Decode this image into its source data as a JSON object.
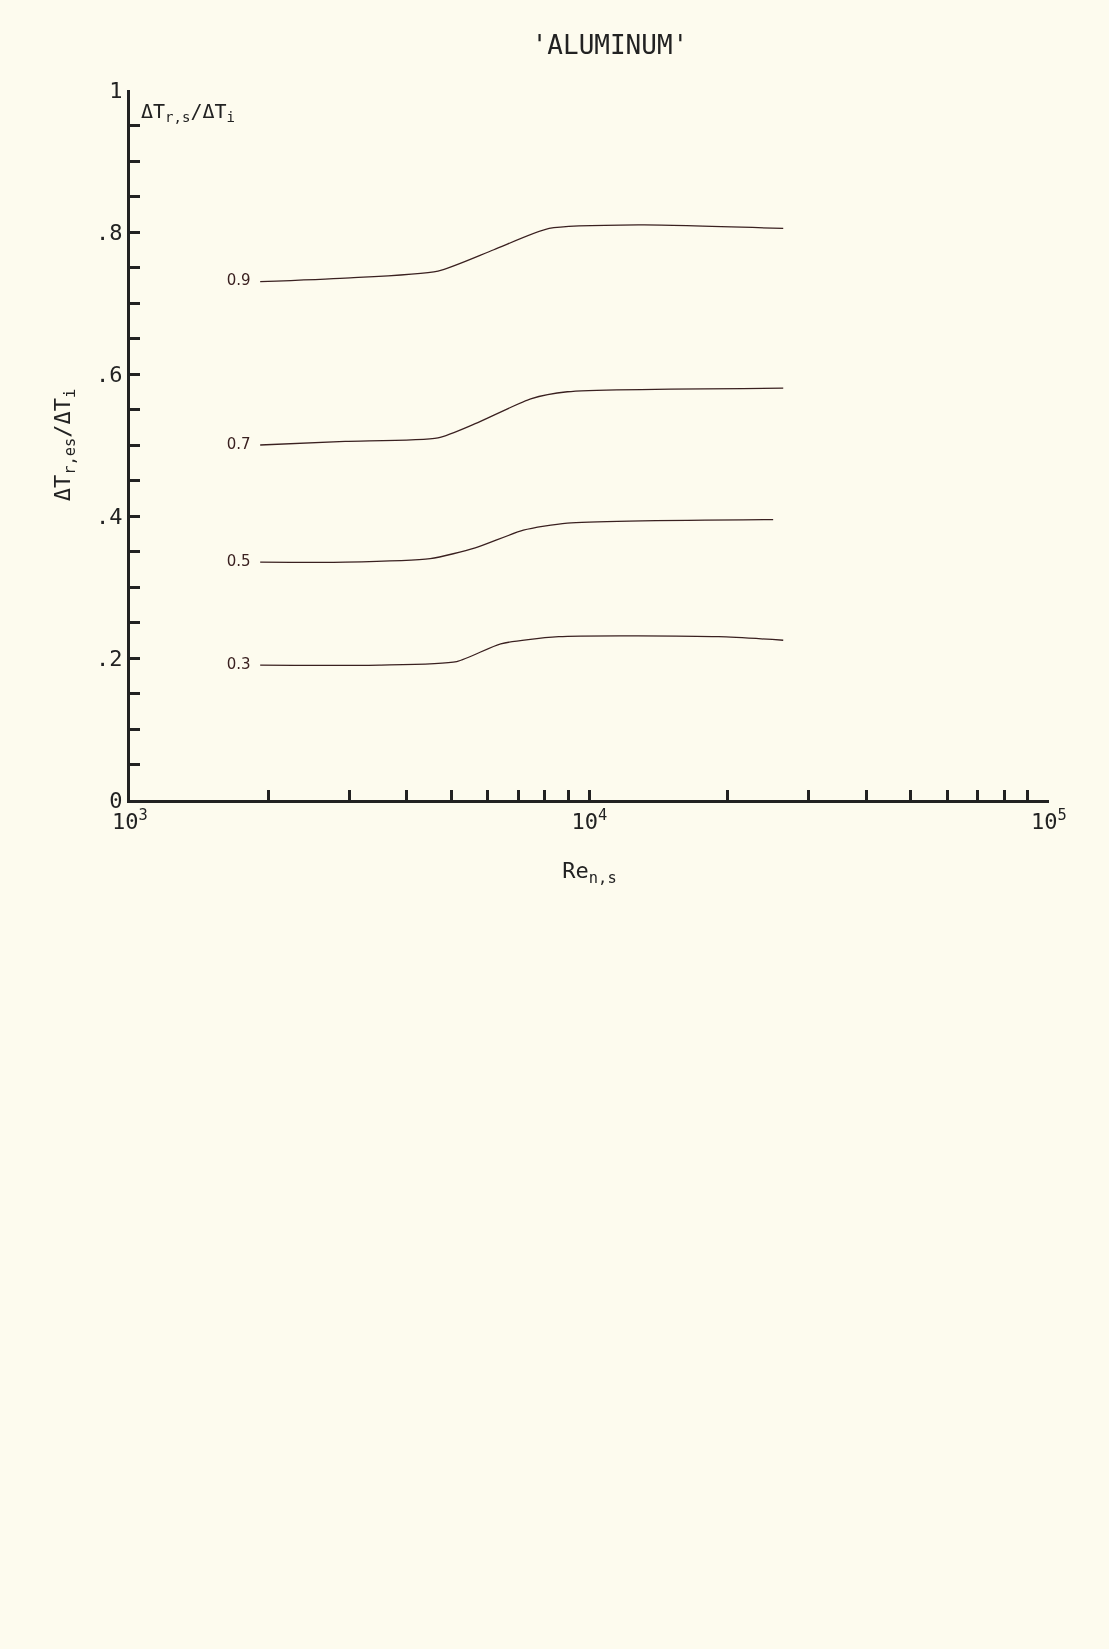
{
  "chart_data": {
    "type": "line",
    "title": "'ALUMINUM'",
    "xlabel": "Re$_{n,s}$",
    "ylabel": "ΔT$_{r,es}$/ΔT$_{i}$",
    "legend_title": "ΔT$_{r,s}$/ΔT$_{i}$",
    "log": "x",
    "grid": false,
    "legend": false,
    "marker": "none",
    "line_style": "solid",
    "xlim": [
      1000,
      100000
    ],
    "xticks": [
      {
        "value": 1000,
        "label": "10$^{3}$"
      },
      {
        "value": 2000,
        "label": null
      },
      {
        "value": 3000,
        "label": null
      },
      {
        "value": 4000,
        "label": null
      },
      {
        "value": 5000,
        "label": null
      },
      {
        "value": 6000,
        "label": null
      },
      {
        "value": 7000,
        "label": null
      },
      {
        "value": 8000,
        "label": null
      },
      {
        "value": 9000,
        "label": null
      },
      {
        "value": 10000,
        "label": "10$^{4}$"
      },
      {
        "value": 20000,
        "label": null
      },
      {
        "value": 30000,
        "label": null
      },
      {
        "value": 40000,
        "label": null
      },
      {
        "value": 50000,
        "label": null
      },
      {
        "value": 60000,
        "label": null
      },
      {
        "value": 70000,
        "label": null
      },
      {
        "value": 80000,
        "label": null
      },
      {
        "value": 90000,
        "label": null
      },
      {
        "value": 100000,
        "label": "10$^{5}$"
      }
    ],
    "ylim": [
      0,
      1
    ],
    "yticks": [
      {
        "value": 0,
        "label": "0"
      },
      {
        "value": 0.05,
        "label": null
      },
      {
        "value": 0.1,
        "label": null
      },
      {
        "value": 0.15,
        "label": null
      },
      {
        "value": 0.2,
        "label": ".2"
      },
      {
        "value": 0.25,
        "label": null
      },
      {
        "value": 0.3,
        "label": null
      },
      {
        "value": 0.35,
        "label": null
      },
      {
        "value": 0.4,
        "label": ".4"
      },
      {
        "value": 0.45,
        "label": null
      },
      {
        "value": 0.5,
        "label": null
      },
      {
        "value": 0.55,
        "label": null
      },
      {
        "value": 0.6,
        "label": ".6"
      },
      {
        "value": 0.65,
        "label": null
      },
      {
        "value": 0.7,
        "label": null
      },
      {
        "value": 0.75,
        "label": null
      },
      {
        "value": 0.8,
        "label": ".8"
      },
      {
        "value": 0.85,
        "label": null
      },
      {
        "value": 0.9,
        "label": null
      },
      {
        "value": 0.95,
        "label": null
      },
      1
    ],
    "series": [
      {
        "name": "0.9",
        "color": "#3a2020",
        "x": [
          1920,
          2940,
          4680,
          6190,
          8170,
          13000,
          26400
        ],
        "values": [
          0.73,
          0.735,
          0.745,
          0.775,
          0.805,
          0.81,
          0.805
        ]
      },
      {
        "name": "0.7",
        "color": "#3a2020",
        "x": [
          1920,
          2940,
          4680,
          5640,
          7450,
          8950,
          26400
        ],
        "values": [
          0.5,
          0.505,
          0.51,
          0.53,
          0.565,
          0.575,
          0.58
        ]
      },
      {
        "name": "0.5",
        "color": "#3a2020",
        "x": [
          1920,
          2940,
          4500,
          5640,
          7180,
          8950,
          25100
        ],
        "values": [
          0.335,
          0.335,
          0.34,
          0.355,
          0.38,
          0.39,
          0.395
        ]
      },
      {
        "name": "0.3",
        "color": "#3a2020",
        "x": [
          1920,
          3490,
          5140,
          6410,
          8570,
          19100,
          26400
        ],
        "values": [
          0.19,
          0.19,
          0.195,
          0.22,
          0.23,
          0.23,
          0.225
        ]
      }
    ]
  }
}
